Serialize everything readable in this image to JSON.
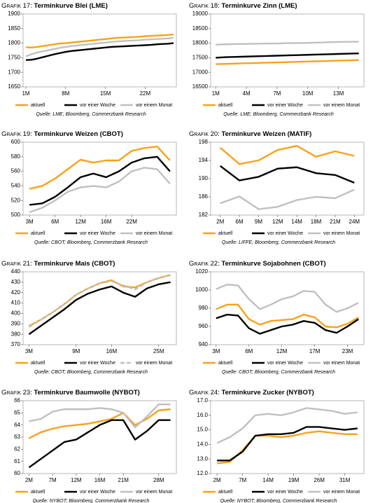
{
  "chart_data": [
    {
      "type": "line",
      "label": "Grafik 17:",
      "title": "Terminkurve Blei (LME)",
      "source": "Quelle: LME; Bloomberg, Commerzbank Research",
      "categories": [
        "1M",
        null,
        null,
        null,
        null,
        null,
        null,
        "8M",
        null,
        null,
        null,
        null,
        null,
        null,
        "15M",
        null,
        null,
        null,
        null,
        null,
        null,
        "22M",
        null,
        null,
        null,
        null,
        null
      ],
      "series": [
        {
          "name": "aktuell",
          "color": "#f7a21b",
          "values": [
            1786,
            1785,
            1787,
            1790,
            1793,
            1796,
            1799,
            1800,
            1802,
            1804,
            1806,
            1808,
            1810,
            1812,
            1814,
            1816,
            1818,
            1819,
            1820,
            1821,
            1822,
            1824,
            1825,
            1826,
            1827,
            1828,
            1830
          ]
        },
        {
          "name": "vor einer Woche",
          "color": "#000000",
          "values": [
            1742,
            1743,
            1747,
            1752,
            1757,
            1762,
            1766,
            1770,
            1773,
            1775,
            1777,
            1779,
            1781,
            1783,
            1785,
            1787,
            1788,
            1789,
            1790,
            1791,
            1792,
            1793,
            1794,
            1796,
            1797,
            1798,
            1800
          ]
        },
        {
          "name": "vor einem Monat",
          "color": "#c0c0c0",
          "values": [
            1755,
            1762,
            1768,
            1772,
            1776,
            1780,
            1784,
            1787,
            1790,
            1792,
            1794,
            1796,
            1798,
            1800,
            1802,
            1804,
            1806,
            1807,
            1808,
            1809,
            1810,
            1812,
            1813,
            1814,
            1815,
            1816,
            1818
          ]
        }
      ],
      "ylim": [
        1650,
        1900
      ],
      "yticks": [
        1650,
        1700,
        1750,
        1800,
        1850,
        1900
      ]
    },
    {
      "type": "line",
      "label": "Grafik 18:",
      "title": "Terminkurve Zinn (LME)",
      "source": "Quelle: LME; Bloomberg, Commerzbank Research",
      "categories": [
        "1M",
        null,
        null,
        "4M",
        null,
        null,
        "7M",
        null,
        null,
        "10M",
        null,
        null,
        "13M",
        null,
        null
      ],
      "series": [
        {
          "name": "aktuell",
          "color": "#f7a21b",
          "values": [
            17280,
            17290,
            17300,
            17310,
            17320,
            17330,
            17340,
            17350,
            17360,
            17370,
            17380,
            17390,
            17400,
            17410,
            17420
          ]
        },
        {
          "name": "vor einer Woche",
          "color": "#000000",
          "values": [
            17500,
            17520,
            17530,
            17540,
            17550,
            17560,
            17570,
            17580,
            17590,
            17600,
            17610,
            17620,
            17630,
            17640,
            17650
          ]
        },
        {
          "name": "vor einem Monat",
          "color": "#c0c0c0",
          "values": [
            17950,
            17960,
            17970,
            17975,
            17980,
            17985,
            17990,
            18000,
            18005,
            18010,
            18020,
            18030,
            18040,
            18045,
            18050
          ]
        }
      ],
      "ylim": [
        16500,
        19000
      ],
      "yticks": [
        16500,
        17000,
        17500,
        18000,
        18500,
        19000
      ]
    },
    {
      "type": "line",
      "label": "Grafik 19:",
      "title": "Terminkurve Weizen (CBOT)",
      "source": "Quelle: CBOT; Bloomberg, Commerzbank Research",
      "categories": [
        "3M",
        null,
        "6M",
        null,
        "12M",
        null,
        "16M",
        null,
        "22M",
        null,
        null,
        null
      ],
      "series": [
        {
          "name": "aktuell",
          "color": "#f7a21b",
          "values": [
            536,
            540,
            550,
            563,
            576,
            572,
            575,
            575,
            588,
            592,
            594,
            575
          ]
        },
        {
          "name": "vor einer Woche",
          "color": "#000000",
          "values": [
            514,
            516,
            525,
            538,
            552,
            557,
            552,
            560,
            572,
            578,
            580,
            560
          ]
        },
        {
          "name": "vor einem Monat",
          "color": "#c0c0c0",
          "values": [
            504,
            510,
            520,
            532,
            538,
            540,
            538,
            546,
            560,
            565,
            563,
            543
          ]
        }
      ],
      "ylim": [
        500,
        600
      ],
      "yticks": [
        500,
        520,
        540,
        560,
        580,
        600
      ]
    },
    {
      "type": "line",
      "label": "Grafik 20:",
      "title": "Terminkurve Weizen (MATIF)",
      "source": "Quelle: LIFFE; Bloomberg, Commerzbank Research",
      "categories": [
        "2M",
        "6M",
        "9M",
        "12M",
        "14M",
        "18M",
        "21M",
        "24M"
      ],
      "series": [
        {
          "name": "aktuell",
          "color": "#f7a21b",
          "values": [
            196.8,
            193.2,
            194,
            196.3,
            197.2,
            194.8,
            196,
            195
          ]
        },
        {
          "name": "vor einer Woche",
          "color": "#000000",
          "values": [
            192.8,
            189.6,
            190.4,
            192.2,
            192.5,
            191.2,
            190.8,
            189.1
          ]
        },
        {
          "name": "vor einem Monat",
          "color": "#c0c0c0",
          "values": [
            184.6,
            186.1,
            183.3,
            183.8,
            185.3,
            186,
            185.7,
            187.6
          ]
        }
      ],
      "ylim": [
        182,
        198
      ],
      "yticks": [
        182,
        186,
        190,
        194,
        198
      ]
    },
    {
      "type": "line",
      "label": "Grafik 21:",
      "title": "Terminkurve Mais (CBOT)",
      "source": "Quelle: CBOT; Bloomberg, Commerzbank Research",
      "categories": [
        "3M",
        null,
        null,
        null,
        "9M",
        null,
        null,
        "16M",
        null,
        null,
        null,
        "25M",
        null
      ],
      "series": [
        {
          "name": "aktuell",
          "color": "#f7a21b",
          "values": [
            388,
            394,
            401,
            409,
            418,
            424,
            429,
            432,
            426,
            425,
            430,
            434,
            437
          ]
        },
        {
          "name": "vor einer Woche",
          "color": "#000000",
          "values": [
            380,
            388,
            396,
            404,
            413,
            419,
            423,
            426,
            420,
            416,
            424,
            428,
            430
          ]
        },
        {
          "name": "vor einem Monat",
          "color": "#c0c0c0",
          "dash": true,
          "values": [
            387,
            394,
            401,
            409,
            418,
            424,
            429,
            431,
            427,
            423,
            430,
            434,
            437
          ]
        }
      ],
      "ylim": [
        370,
        440
      ],
      "yticks": [
        370,
        380,
        390,
        400,
        410,
        420,
        430,
        440
      ]
    },
    {
      "type": "line",
      "label": "Grafik 22:",
      "title": "Terminkurve Sojabohnen (CBOT)",
      "source": "Quelle: CBOT; Bloomberg, Commerzbank Research",
      "categories": [
        "3M",
        null,
        null,
        "6M",
        null,
        null,
        "12M",
        null,
        null,
        "17M",
        null,
        null,
        "23M",
        null
      ],
      "series": [
        {
          "name": "aktuell",
          "color": "#f7a21b",
          "values": [
            979,
            984,
            984,
            968,
            962,
            966,
            967,
            968,
            973,
            970,
            960,
            959,
            963,
            970
          ]
        },
        {
          "name": "vor einer Woche",
          "color": "#000000",
          "values": [
            969,
            973,
            972,
            958,
            952,
            956,
            960,
            962,
            966,
            964,
            956,
            953,
            960,
            968
          ]
        },
        {
          "name": "vor einem Monat",
          "color": "#c0c0c0",
          "values": [
            1001,
            1006,
            1005,
            990,
            979,
            984,
            990,
            993,
            999,
            998,
            984,
            976,
            980,
            986
          ]
        }
      ],
      "ylim": [
        940,
        1020
      ],
      "yticks": [
        940,
        960,
        980,
        1000,
        1020
      ]
    },
    {
      "type": "line",
      "label": "Grafik 23:",
      "title": "Terminkurve Baumwolle (NYBOT)",
      "source": "Quelle: NYBOT; Bloomberg, Commerzbank Research",
      "categories": [
        "2M",
        null,
        "7M",
        null,
        "12M",
        null,
        "16M",
        null,
        "21M",
        null,
        null,
        "28M",
        null
      ],
      "series": [
        {
          "name": "aktuell",
          "color": "#f7a21b",
          "values": [
            62.9,
            63.4,
            63.7,
            63.9,
            64.0,
            64.1,
            64.3,
            64.5,
            65.0,
            64.0,
            64.5,
            65.2,
            65.3
          ]
        },
        {
          "name": "vor einer Woche",
          "color": "#000000",
          "values": [
            60.5,
            61.2,
            61.9,
            62.6,
            62.8,
            63.4,
            64.0,
            64.4,
            64.4,
            62.8,
            63.5,
            64.4,
            64.4
          ]
        },
        {
          "name": "vor einem Monat",
          "color": "#c0c0c0",
          "values": [
            64.3,
            64.5,
            65.1,
            65.3,
            65.3,
            65.3,
            65.4,
            65.3,
            65.0,
            63.8,
            64.7,
            65.7,
            65.7
          ]
        }
      ],
      "ylim": [
        60,
        66
      ],
      "yticks": [
        60,
        61,
        62,
        63,
        64,
        65,
        66
      ]
    },
    {
      "type": "line",
      "label": "Grafik 24:",
      "title": "Terminkurve Zucker (NYBOT)",
      "source": "Quelle: NYBOT; Bloomberg, Commerzbank Research",
      "categories": [
        "2M",
        null,
        "7M",
        null,
        "14M",
        null,
        "19M",
        null,
        "26M",
        null,
        "31M",
        null
      ],
      "series": [
        {
          "name": "aktuell",
          "color": "#f7a21b",
          "values": [
            12.7,
            12.8,
            13.6,
            14.6,
            14.6,
            14.5,
            14.6,
            14.8,
            14.9,
            14.8,
            14.7,
            14.7
          ]
        },
        {
          "name": "vor einer Woche",
          "color": "#000000",
          "values": [
            12.9,
            12.9,
            13.5,
            14.6,
            14.7,
            14.7,
            14.8,
            15.2,
            15.2,
            15.1,
            15.0,
            15.1
          ]
        },
        {
          "name": "vor einem Monat",
          "color": "#c0c0c0",
          "values": [
            14.1,
            14.5,
            15.1,
            16.0,
            16.1,
            16.0,
            16.2,
            16.5,
            16.4,
            16.3,
            16.1,
            16.2
          ]
        }
      ],
      "ylim": [
        12,
        17
      ],
      "yticks": [
        {
          "value": 12,
          "label": "12.0"
        },
        {
          "value": 13,
          "label": "13.0"
        },
        {
          "value": 14,
          "label": "14.0"
        },
        {
          "value": 15,
          "label": "15.0"
        },
        {
          "value": 16,
          "label": "16.0"
        },
        {
          "value": 17,
          "label": "17.0"
        }
      ]
    }
  ]
}
